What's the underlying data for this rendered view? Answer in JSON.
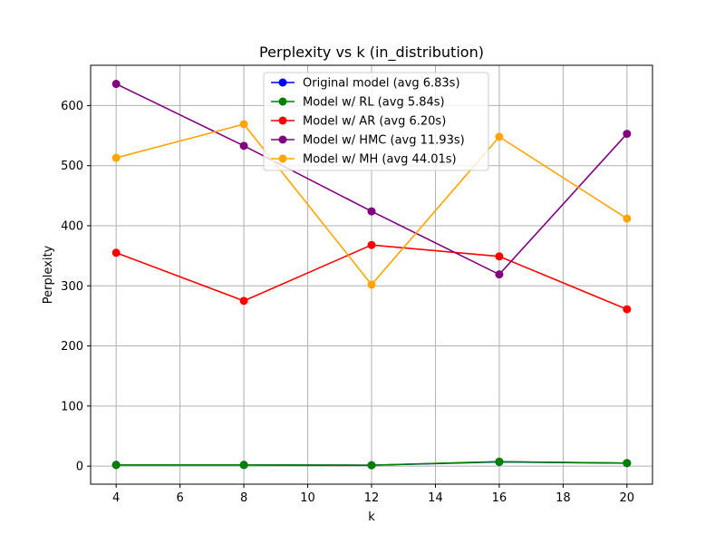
{
  "chart_data": {
    "type": "line",
    "title": "Perplexity vs k (in_distribution)",
    "xlabel": "k",
    "ylabel": "Perplexity",
    "x": [
      4,
      8,
      12,
      16,
      20
    ],
    "xticks": [
      4,
      6,
      8,
      10,
      12,
      14,
      16,
      18,
      20
    ],
    "yticks": [
      0,
      100,
      200,
      300,
      400,
      500,
      600
    ],
    "xlim": [
      3.2,
      20.8
    ],
    "ylim": [
      -30,
      667
    ],
    "grid": true,
    "legend_position": "top-center",
    "series": [
      {
        "name": "Original model (avg 6.83s)",
        "color": "#0000ff",
        "values": [
          2,
          2,
          1.5,
          7,
          5
        ]
      },
      {
        "name": "Model w/ RL (avg 5.84s)",
        "color": "#008000",
        "values": [
          2,
          2,
          1.5,
          7.5,
          5
        ]
      },
      {
        "name": "Model w/ AR (avg 6.20s)",
        "color": "#ff0000",
        "values": [
          355,
          275,
          368,
          349,
          261
        ]
      },
      {
        "name": "Model w/ HMC (avg 11.93s)",
        "color": "#800080",
        "values": [
          636,
          533,
          424,
          319,
          553
        ]
      },
      {
        "name": "Model w/ MH (avg 44.01s)",
        "color": "#ffa500",
        "values": [
          513,
          569,
          302,
          548,
          412
        ]
      }
    ]
  }
}
